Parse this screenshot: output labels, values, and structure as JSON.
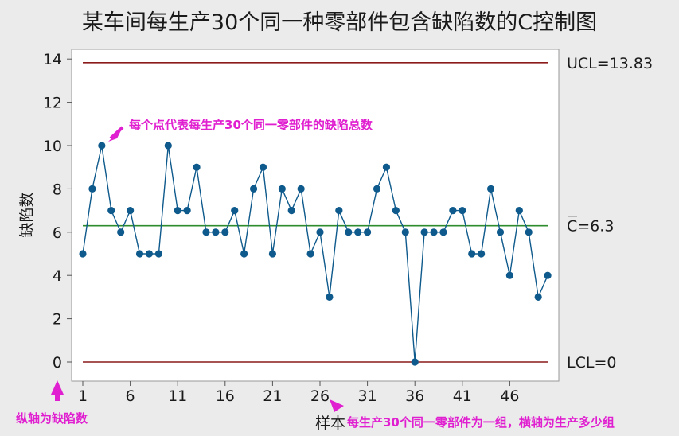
{
  "chart_data": {
    "type": "line",
    "title": "某车间每生产30个同一种零部件包含缺陷数的C控制图",
    "xlabel": "样本",
    "ylabel": "缺陷数",
    "x_ticks": [
      1,
      6,
      11,
      16,
      21,
      26,
      31,
      36,
      41,
      46
    ],
    "y_ticks": [
      0,
      2,
      4,
      6,
      8,
      10,
      12,
      14
    ],
    "xlim": [
      1,
      49
    ],
    "ylim": [
      0,
      14.5
    ],
    "series": [
      {
        "color": "#0f5a8c",
        "x": [
          1,
          2,
          3,
          4,
          5,
          6,
          7,
          8,
          9,
          10,
          11,
          12,
          13,
          14,
          15,
          16,
          17,
          18,
          19,
          20,
          21,
          22,
          23,
          24,
          25,
          26,
          27,
          28,
          29,
          30,
          31,
          32,
          33,
          34,
          35,
          36,
          37,
          38,
          39,
          40,
          41,
          42,
          43,
          44,
          45,
          46,
          47,
          48,
          49,
          50
        ],
        "values": [
          5,
          8,
          10,
          7,
          6,
          7,
          5,
          5,
          5,
          10,
          7,
          7,
          9,
          6,
          6,
          6,
          7,
          5,
          8,
          9,
          5,
          8,
          7,
          8,
          5,
          6,
          3,
          7,
          6,
          6,
          6,
          8,
          9,
          7,
          6,
          0,
          6,
          6,
          6,
          7,
          7,
          5,
          5,
          8,
          6,
          4,
          7,
          6,
          3,
          4
        ]
      }
    ],
    "control_lines": {
      "ucl": {
        "value": 13.83,
        "label": "UCL=13.83",
        "color": "#8b1a1a"
      },
      "center": {
        "value": 6.3,
        "label": "C=6.3",
        "color": "#2e8b2e"
      },
      "lcl": {
        "value": 0,
        "label": "LCL=0",
        "color": "#8b1a1a"
      }
    },
    "annotations": {
      "point_note": "每个点代表每生产30个同一零部件的缺陷总数",
      "y_note": "纵轴为缺陷数",
      "x_note": "每生产30个同一零部件为一组，横轴为生产多少组"
    },
    "grid": false
  }
}
